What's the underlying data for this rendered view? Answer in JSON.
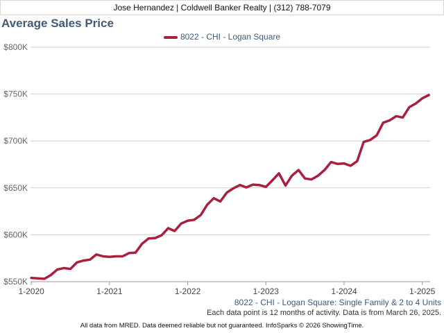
{
  "header": {
    "agent_line": "Jose Hernandez | Coldwell Banker Realty | (312) 788-7079"
  },
  "chart_data": {
    "type": "line",
    "title": "Average Sales Price",
    "legend_position": "top-center",
    "grid": true,
    "series": [
      {
        "name": "8022 - CHI - Logan Square",
        "color": "#a8203e",
        "x": [
          2020.0,
          2020.083,
          2020.167,
          2020.25,
          2020.333,
          2020.417,
          2020.5,
          2020.583,
          2020.667,
          2020.75,
          2020.833,
          2020.917,
          2021.0,
          2021.083,
          2021.167,
          2021.25,
          2021.333,
          2021.417,
          2021.5,
          2021.583,
          2021.667,
          2021.75,
          2021.833,
          2021.917,
          2022.0,
          2022.083,
          2022.167,
          2022.25,
          2022.333,
          2022.417,
          2022.5,
          2022.583,
          2022.667,
          2022.75,
          2022.833,
          2022.917,
          2023.0,
          2023.083,
          2023.167,
          2023.25,
          2023.333,
          2023.417,
          2023.5,
          2023.583,
          2023.667,
          2023.75,
          2023.833,
          2023.917,
          2024.0,
          2024.083,
          2024.167,
          2024.25,
          2024.333,
          2024.417,
          2024.5,
          2024.583,
          2024.667,
          2024.75,
          2024.833,
          2024.917,
          2025.0,
          2025.083
        ],
        "values": [
          554000,
          553500,
          553000,
          557000,
          563000,
          564500,
          563500,
          570500,
          572500,
          573500,
          579000,
          577000,
          576500,
          577000,
          577000,
          580500,
          581000,
          590500,
          596000,
          596500,
          599500,
          607000,
          604000,
          612000,
          615000,
          616000,
          621000,
          632000,
          639000,
          635500,
          645000,
          649500,
          653000,
          650500,
          653500,
          653000,
          651000,
          658000,
          665500,
          652500,
          663000,
          669000,
          660000,
          659000,
          663000,
          669000,
          677500,
          675500,
          676000,
          673500,
          678500,
          699000,
          701000,
          706000,
          719500,
          722000,
          726500,
          725000,
          736000,
          740000,
          745500,
          749000
        ]
      }
    ],
    "y_ticks": [
      "$550K",
      "$600K",
      "$650K",
      "$700K",
      "$750K",
      "$800K"
    ],
    "y_tick_values": [
      550000,
      600000,
      650000,
      700000,
      750000,
      800000
    ],
    "ylim": [
      550000,
      800000
    ],
    "x_ticks": [
      "1-2020",
      "1-2021",
      "1-2022",
      "1-2023",
      "1-2024",
      "1-2025"
    ],
    "x_tick_values": [
      2020,
      2021,
      2022,
      2023,
      2024,
      2025
    ],
    "xlim": [
      2019.99,
      2025.1
    ]
  },
  "subtitle": "8022 - CHI - Logan Square: Single Family & 2 to 4 Units",
  "note": "Each data point is 12 months of activity. Data is from March 26, 2025.",
  "footer": "All data from MRED. Data deemed reliable but not guaranteed. InfoSparks © 2026 ShowingTime."
}
